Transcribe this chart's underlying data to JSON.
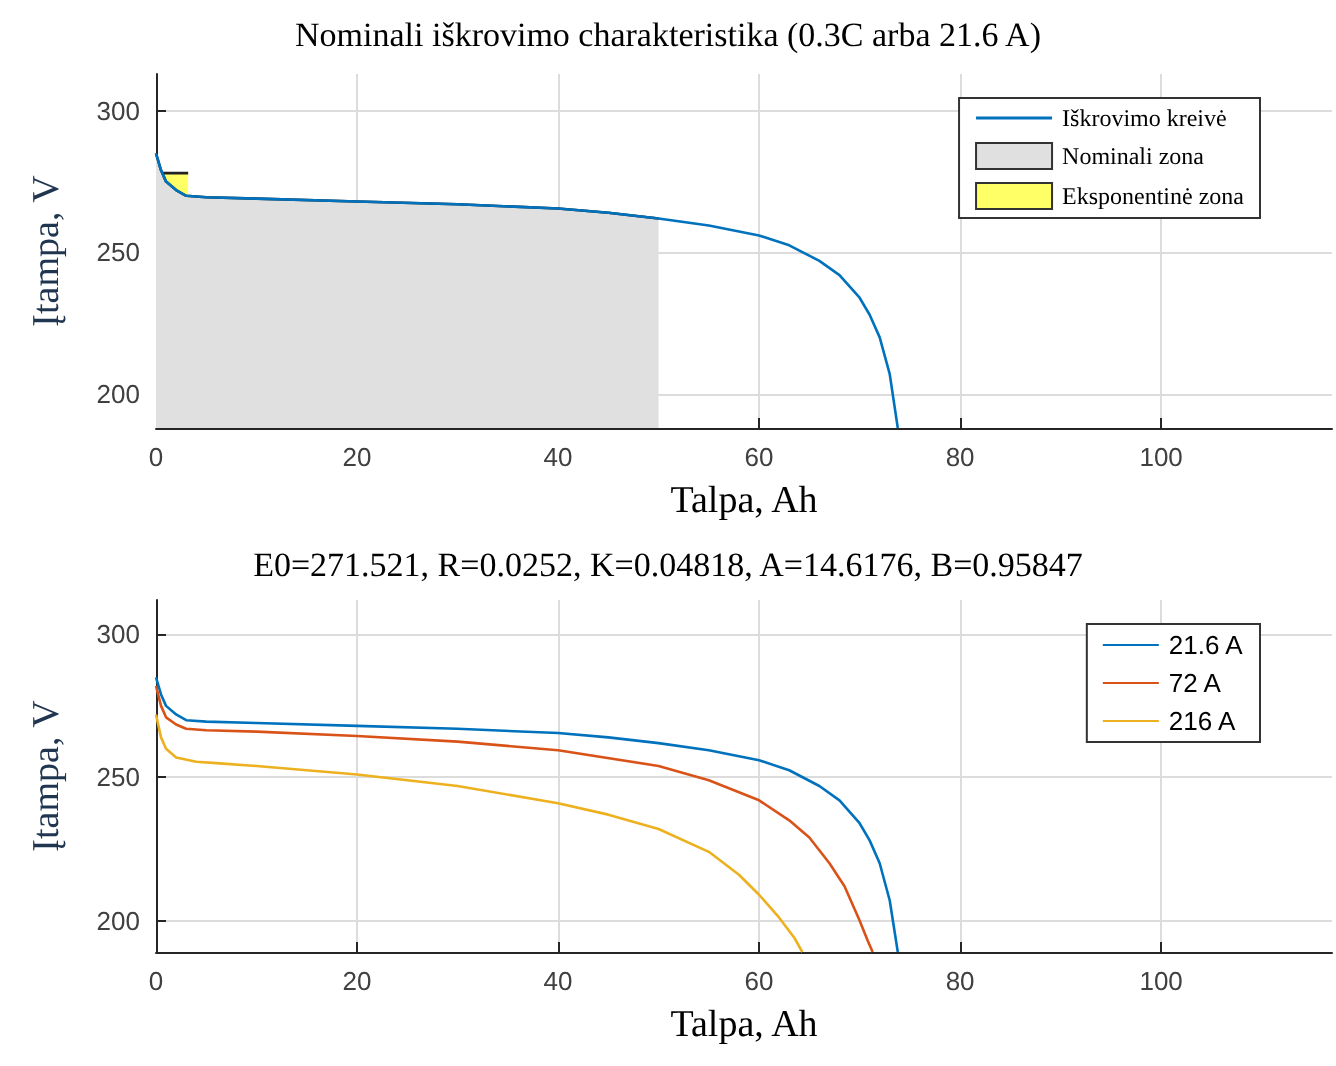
{
  "chart_data": [
    {
      "type": "line",
      "title": "Nominali iškrovimo charakteristika (0.3C arba 21.6 A)",
      "xlabel": "Talpa, Ah",
      "ylabel": "Įtampa, V",
      "xlim": [
        0,
        117
      ],
      "xticks": [
        0,
        20,
        40,
        60,
        80,
        100
      ],
      "ylim": [
        188,
        313
      ],
      "yticks": [
        200,
        250,
        300
      ],
      "grid": true,
      "legend": "top right",
      "marker": "none",
      "line_style": "solid",
      "series": [
        {
          "name": "Iškrovimo kreivė",
          "color": "#0072bd",
          "x": [
            0,
            0.5,
            1,
            2,
            3,
            5,
            10,
            20,
            30,
            40,
            45,
            50,
            55,
            60,
            63,
            66,
            68,
            70,
            71,
            72,
            73,
            73.8
          ],
          "values": [
            285,
            279,
            275,
            272,
            270,
            269.5,
            269,
            268,
            267,
            265.5,
            264,
            262,
            259.5,
            256,
            252.5,
            247,
            242,
            234,
            228,
            220,
            207,
            188
          ]
        },
        {
          "name": "Nominali zona",
          "type": "area",
          "color": "#e0e0e0",
          "x": [
            0,
            0.5,
            1,
            2,
            3,
            5,
            10,
            20,
            30,
            40,
            45,
            50
          ],
          "values": [
            285,
            279,
            275,
            272,
            270,
            269.5,
            269,
            268,
            267,
            265.5,
            264,
            262
          ]
        },
        {
          "name": "Eksponentinė zona",
          "type": "area",
          "color": "#ffff66",
          "x": [
            0.5,
            1,
            2,
            3.2
          ],
          "values": [
            278,
            278,
            278,
            278
          ]
        }
      ]
    },
    {
      "type": "line",
      "title": "E0=271.521, R=0.0252, K=0.04818, A=14.6176, B=0.95847",
      "xlabel": "Talpa, Ah",
      "ylabel": "Įtampa, V",
      "xlim": [
        0,
        117
      ],
      "xticks": [
        0,
        20,
        40,
        60,
        80,
        100
      ],
      "ylim": [
        189,
        312
      ],
      "yticks": [
        200,
        250,
        300
      ],
      "grid": true,
      "legend": "top right",
      "marker": "none",
      "line_style": "solid",
      "series": [
        {
          "name": "21.6 A",
          "color": "#0072bd",
          "x": [
            0,
            0.5,
            1,
            2,
            3,
            5,
            10,
            20,
            30,
            40,
            45,
            50,
            55,
            60,
            63,
            66,
            68,
            70,
            71,
            72,
            73,
            73.8
          ],
          "values": [
            285,
            279,
            275,
            272,
            270,
            269.5,
            269,
            268,
            267,
            265.5,
            264,
            262,
            259.5,
            256,
            252.5,
            247,
            242,
            234,
            228,
            220,
            207,
            189
          ]
        },
        {
          "name": "72 A",
          "color": "#d95319",
          "x": [
            0,
            0.5,
            1,
            2,
            3,
            5,
            10,
            20,
            30,
            40,
            50,
            55,
            60,
            63,
            65,
            67,
            68.5,
            70,
            70.8,
            71.3
          ],
          "values": [
            282,
            275,
            271,
            268.5,
            267,
            266.5,
            266,
            264.5,
            262.5,
            259.5,
            254,
            249,
            242,
            235,
            229,
            220,
            212,
            200,
            193,
            189
          ]
        },
        {
          "name": "216 A",
          "color": "#edb120",
          "x": [
            0,
            0.5,
            1,
            2,
            4,
            6,
            10,
            20,
            30,
            40,
            45,
            50,
            55,
            58,
            60,
            62,
            63.5,
            64.3
          ],
          "values": [
            272,
            264,
            260,
            257,
            255.5,
            255,
            254,
            251,
            247,
            241,
            237,
            232,
            224,
            216,
            209,
            201,
            194,
            189
          ]
        }
      ]
    }
  ]
}
